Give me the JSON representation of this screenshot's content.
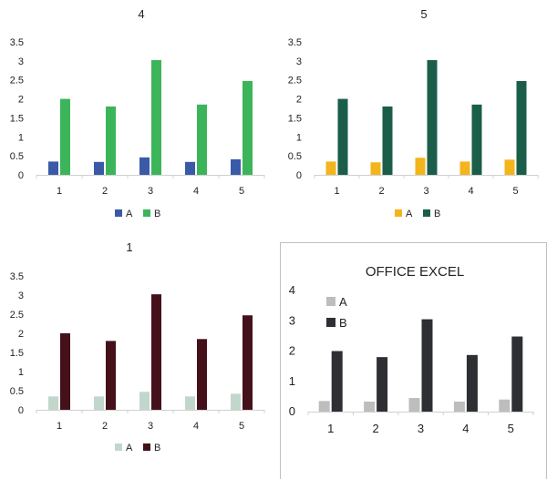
{
  "chart_data": [
    {
      "type": "bar",
      "title": "4",
      "categories": [
        "1",
        "2",
        "3",
        "4",
        "5"
      ],
      "series": [
        {
          "name": "A",
          "color": "#3a5aa8",
          "values": [
            0.35,
            0.34,
            0.46,
            0.34,
            0.41
          ]
        },
        {
          "name": "B",
          "color": "#3cb55a",
          "values": [
            2.0,
            1.8,
            3.02,
            1.85,
            2.47
          ]
        }
      ],
      "yticks": [
        "0",
        "0.5",
        "1",
        "1.5",
        "2",
        "2.5",
        "3",
        "3.5"
      ],
      "ylim": [
        0,
        3.5
      ],
      "legend": "bottom"
    },
    {
      "type": "bar",
      "title": "5",
      "categories": [
        "1",
        "2",
        "3",
        "4",
        "5"
      ],
      "series": [
        {
          "name": "A",
          "color": "#f2b51c",
          "values": [
            0.35,
            0.33,
            0.45,
            0.35,
            0.4
          ]
        },
        {
          "name": "B",
          "color": "#1a5e4a",
          "values": [
            2.0,
            1.8,
            3.02,
            1.85,
            2.47
          ]
        }
      ],
      "yticks": [
        "0",
        "0.5",
        "1",
        "1.5",
        "2",
        "2.5",
        "3",
        "3.5"
      ],
      "ylim": [
        0,
        3.5
      ],
      "legend": "bottom"
    },
    {
      "type": "bar",
      "title": "1",
      "categories": [
        "1",
        "2",
        "3",
        "4",
        "5"
      ],
      "series": [
        {
          "name": "A",
          "color": "#c2d7cc",
          "values": [
            0.35,
            0.35,
            0.47,
            0.35,
            0.42
          ]
        },
        {
          "name": "B",
          "color": "#44111a",
          "values": [
            2.0,
            1.8,
            3.02,
            1.85,
            2.47
          ]
        }
      ],
      "yticks": [
        "0",
        "0.5",
        "1",
        "1.5",
        "2",
        "2.5",
        "3",
        "3.5"
      ],
      "ylim": [
        0,
        3.5
      ],
      "legend": "bottom"
    },
    {
      "type": "bar",
      "title": "OFFICE EXCEL",
      "categories": [
        "1",
        "2",
        "3",
        "4",
        "5"
      ],
      "series": [
        {
          "name": "A",
          "color": "#bdbdbd",
          "values": [
            0.35,
            0.33,
            0.45,
            0.33,
            0.4
          ]
        },
        {
          "name": "B",
          "color": "#2e2f33",
          "values": [
            2.0,
            1.8,
            3.05,
            1.87,
            2.48
          ]
        }
      ],
      "yticks": [
        "0",
        "1",
        "2",
        "3",
        "4"
      ],
      "ylim": [
        0,
        4
      ],
      "legend": "top-left"
    }
  ]
}
